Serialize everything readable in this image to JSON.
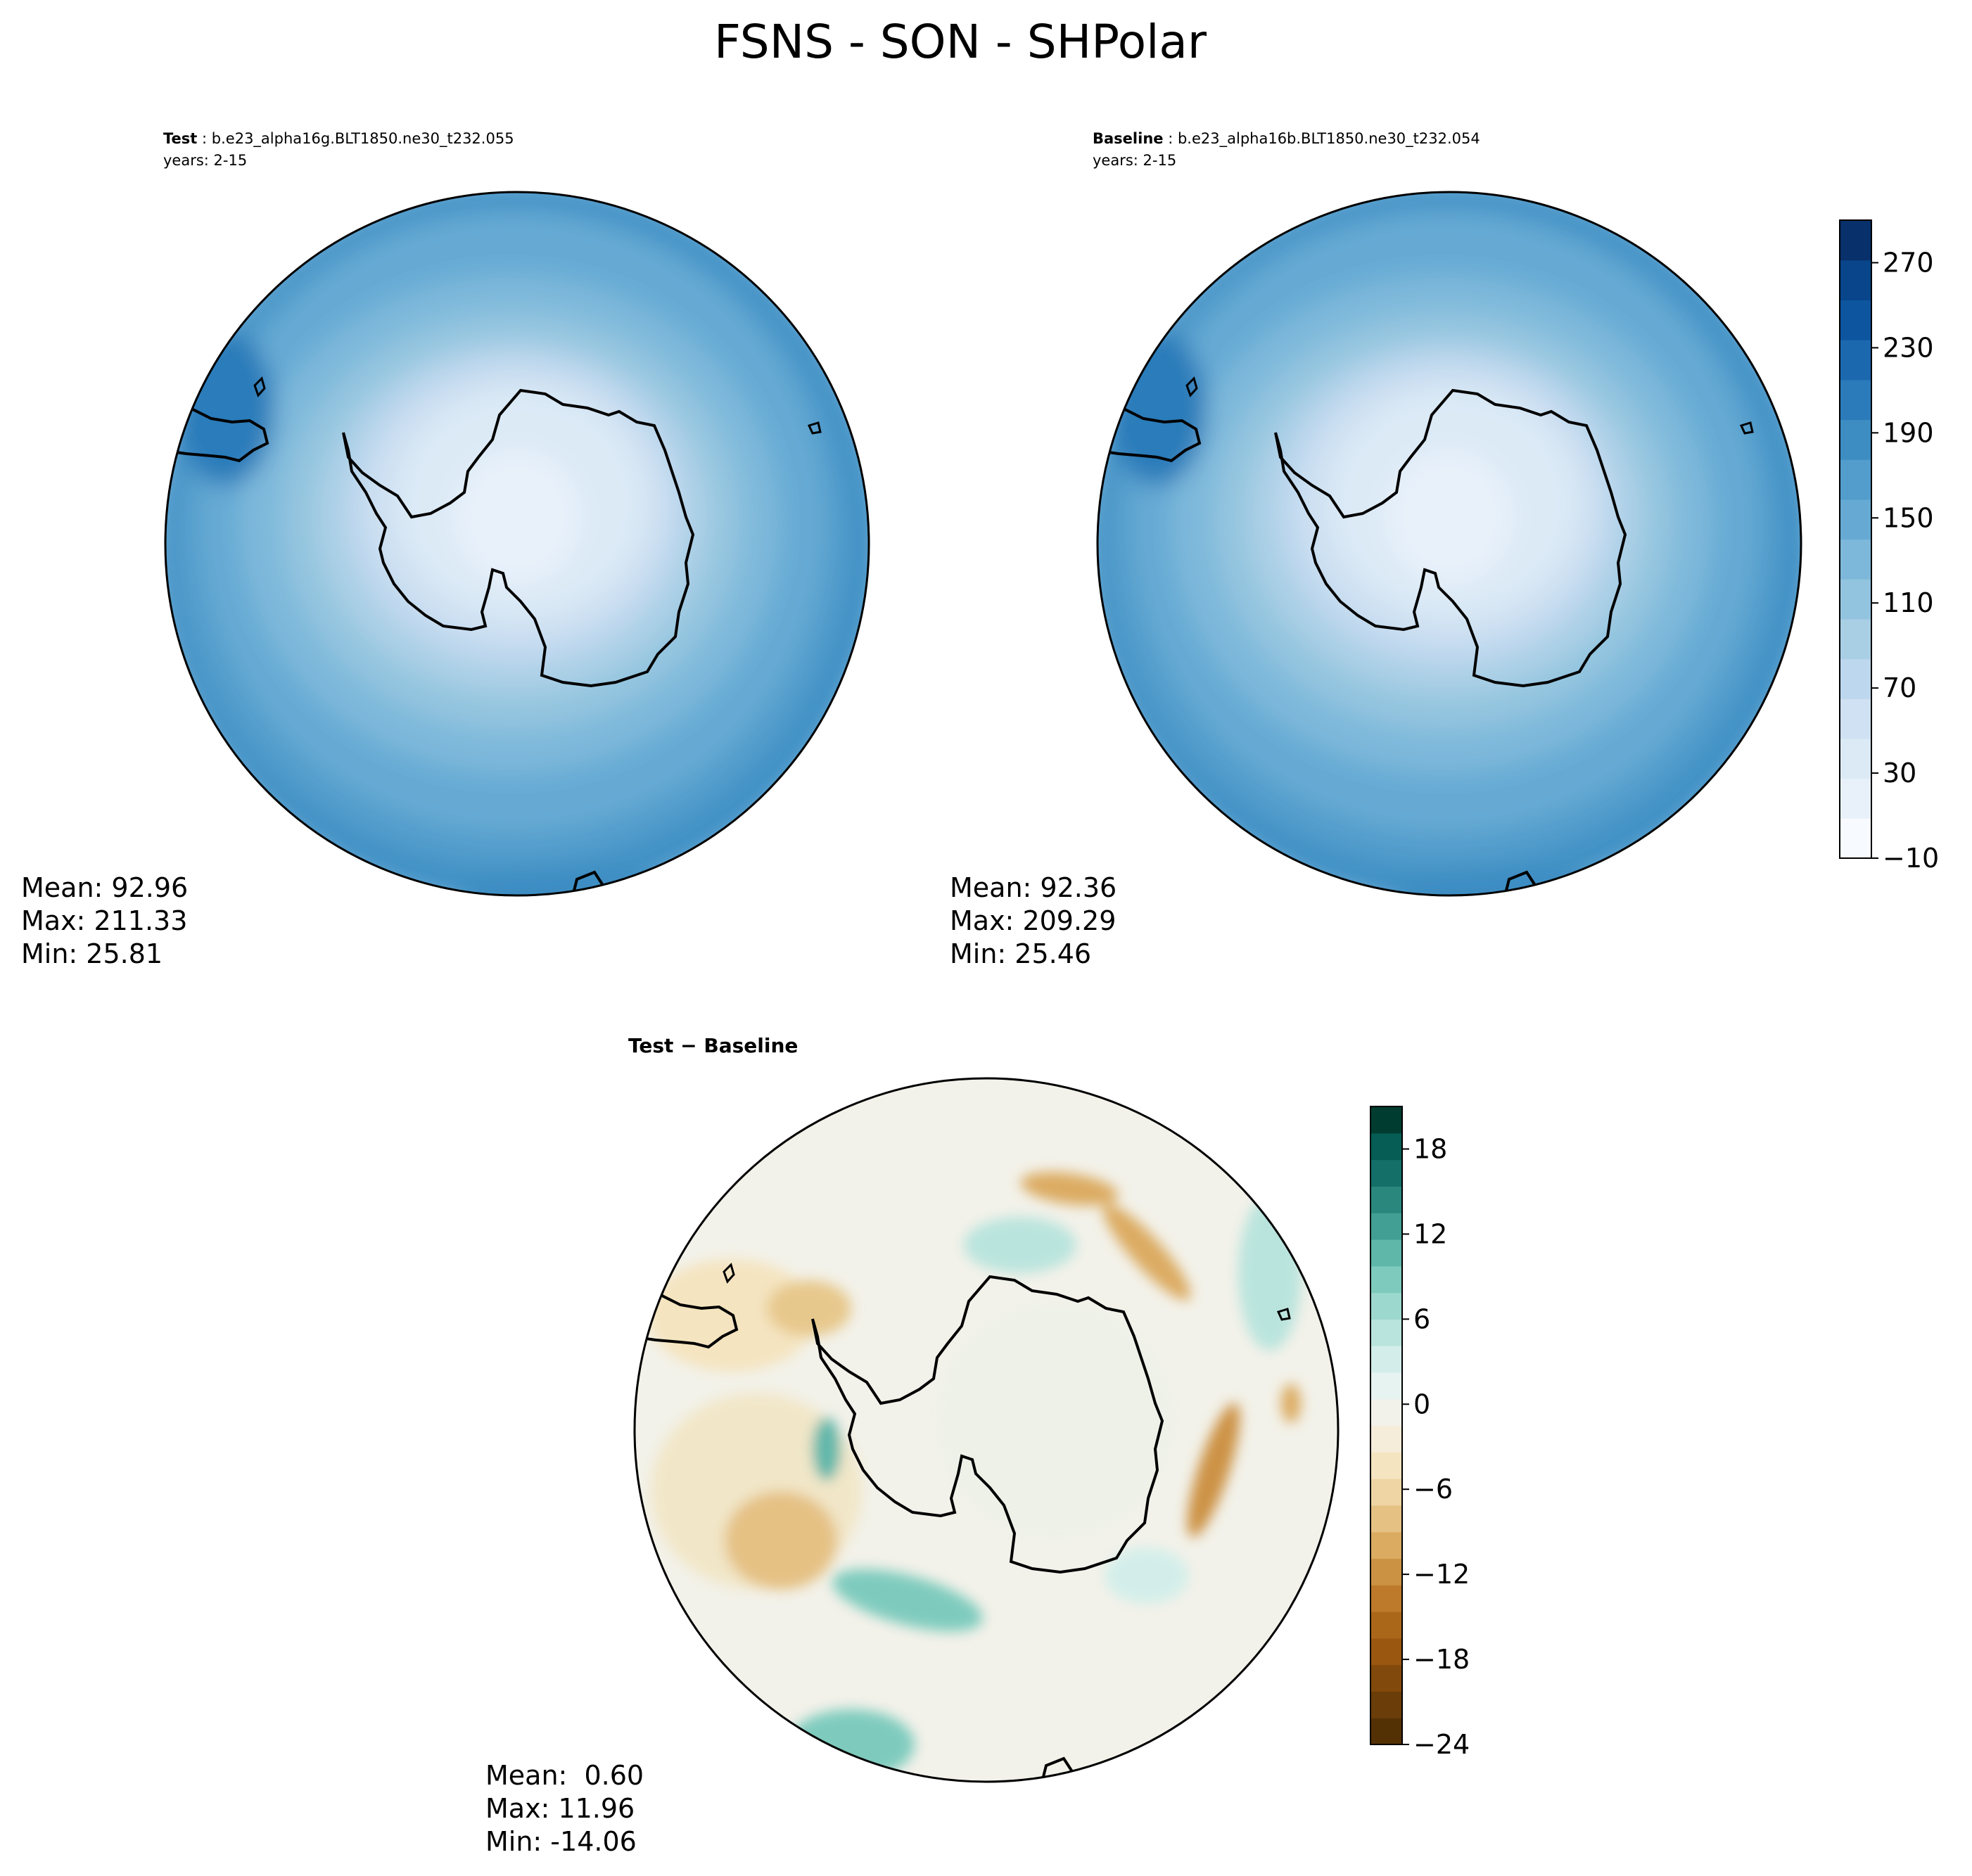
{
  "figure": {
    "title": "FSNS - SON - SHPolar"
  },
  "panels": {
    "test": {
      "label": "Test",
      "case": "b.e23_alpha16g.BLT1850.ne30_t232.055",
      "years": "years: 2-15",
      "stats": {
        "mean": "Mean: 92.96",
        "max": "Max: 211.33",
        "min": "Min: 25.81"
      }
    },
    "baseline": {
      "label": "Baseline",
      "case": "b.e23_alpha16b.BLT1850.ne30_t232.054",
      "years": "years: 2-15",
      "stats": {
        "mean": "Mean: 92.36",
        "max": "Max: 209.29",
        "min": "Min: 25.46"
      }
    },
    "diff": {
      "label": "Test − Baseline",
      "stats": {
        "mean": "Mean:  0.60",
        "max": "Max: 11.96",
        "min": "Min: -14.06"
      }
    }
  },
  "chart_data": [
    {
      "type": "heatmap",
      "name": "test-map",
      "projection": "south-polar-stereographic",
      "title": "Test : b.e23_alpha16g.BLT1850.ne30_t232.055",
      "field": "FSNS",
      "field_range": [
        25.81,
        211.33
      ],
      "mean": 92.96
    },
    {
      "type": "heatmap",
      "name": "baseline-map",
      "projection": "south-polar-stereographic",
      "title": "Baseline : b.e23_alpha16b.BLT1850.ne30_t232.054",
      "field": "FSNS",
      "field_range": [
        25.46,
        209.29
      ],
      "mean": 92.36
    },
    {
      "type": "heatmap",
      "name": "diff-map",
      "projection": "south-polar-stereographic",
      "title": "Test − Baseline",
      "field_range": [
        -14.06,
        11.96
      ],
      "mean": 0.6
    }
  ],
  "colorbars": {
    "main": {
      "ticks": [
        "270",
        "230",
        "190",
        "150",
        "110",
        "70",
        "30",
        "−10"
      ],
      "tick_values": [
        270,
        230,
        190,
        150,
        110,
        70,
        30,
        -10
      ],
      "range": [
        -10,
        290
      ],
      "step": 20,
      "colors": [
        "#f7fbff",
        "#e8f1fa",
        "#dceaf6",
        "#cfe1f2",
        "#bdd7ee",
        "#a9cfe5",
        "#93c4df",
        "#7db8da",
        "#66aad4",
        "#529dcc",
        "#3d8dc3",
        "#2b7bba",
        "#1b68ae",
        "#0d559f",
        "#08458a",
        "#08306b"
      ]
    },
    "diff": {
      "ticks": [
        "18",
        "12",
        "6",
        "0",
        "−6",
        "−12",
        "−18",
        "−24"
      ],
      "tick_values": [
        18,
        12,
        6,
        0,
        -6,
        -12,
        -18,
        -24
      ],
      "range": [
        -24,
        21
      ],
      "step": 1.5,
      "colors": [
        "#543005",
        "#6b3d08",
        "#82490c",
        "#995710",
        "#ab6719",
        "#bd7a2a",
        "#cc9244",
        "#dbab62",
        "#e5c184",
        "#eed5a3",
        "#f4e4c0",
        "#f5ecd9",
        "#f3f2ea",
        "#e6f3f1",
        "#d3eeea",
        "#b9e4dd",
        "#9cd8cd",
        "#7ecbbd",
        "#5fb7aa",
        "#429f94",
        "#2a877e",
        "#146f68",
        "#055d55",
        "#003c30"
      ]
    }
  }
}
